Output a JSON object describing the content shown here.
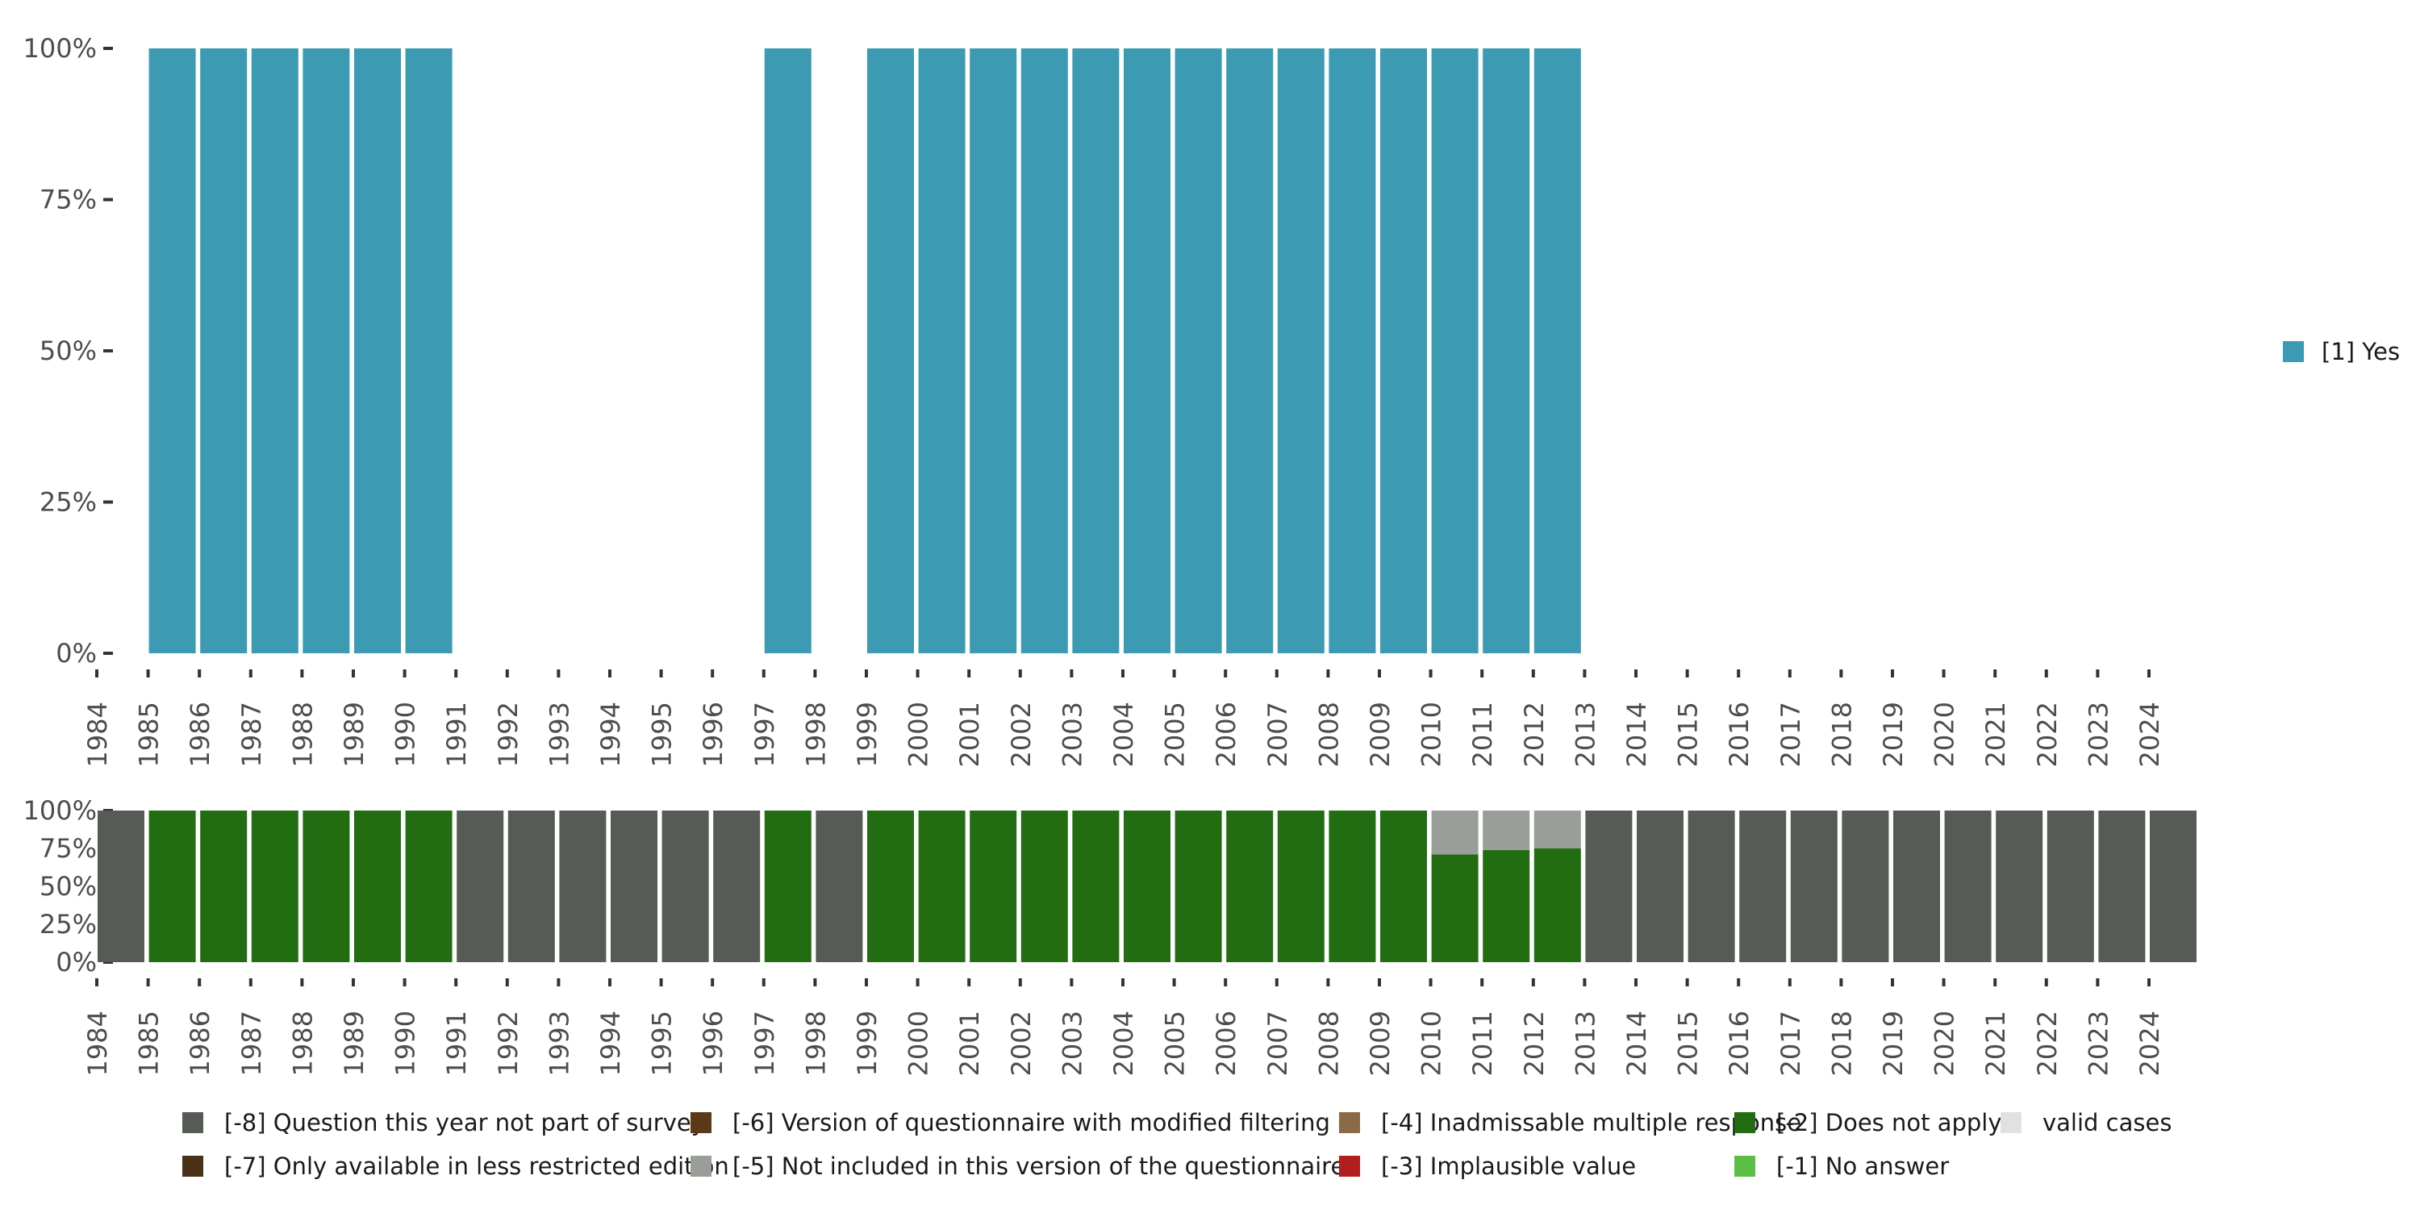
{
  "chart_data": [
    {
      "type": "bar",
      "stacked": true,
      "panel": "top",
      "title": "",
      "xlabel": "",
      "ylabel": "",
      "ylim": [
        0,
        100
      ],
      "yticks": [
        "0%",
        "25%",
        "50%",
        "75%",
        "100%"
      ],
      "categories": [
        "1984",
        "1985",
        "1986",
        "1987",
        "1988",
        "1989",
        "1990",
        "1991",
        "1992",
        "1993",
        "1994",
        "1995",
        "1996",
        "1997",
        "1998",
        "1999",
        "2000",
        "2001",
        "2002",
        "2003",
        "2004",
        "2005",
        "2006",
        "2007",
        "2008",
        "2009",
        "2010",
        "2011",
        "2012",
        "2013",
        "2014",
        "2015",
        "2016",
        "2017",
        "2018",
        "2019",
        "2020",
        "2021",
        "2022",
        "2023",
        "2024"
      ],
      "series": [
        {
          "name": "[1] Yes",
          "color": "#3c9ab2",
          "values": [
            0,
            100,
            100,
            100,
            100,
            100,
            100,
            0,
            0,
            0,
            0,
            0,
            0,
            100,
            0,
            100,
            100,
            100,
            100,
            100,
            100,
            100,
            100,
            100,
            100,
            100,
            100,
            100,
            100,
            0,
            0,
            0,
            0,
            0,
            0,
            0,
            0,
            0,
            0,
            0,
            0
          ]
        }
      ],
      "legend": {
        "position": "right",
        "entries": [
          "[1] Yes"
        ]
      }
    },
    {
      "type": "bar",
      "stacked": true,
      "panel": "bottom",
      "title": "",
      "xlabel": "",
      "ylabel": "",
      "ylim": [
        0,
        100
      ],
      "yticks": [
        "0%",
        "25%",
        "50%",
        "75%",
        "100%"
      ],
      "categories": [
        "1984",
        "1985",
        "1986",
        "1987",
        "1988",
        "1989",
        "1990",
        "1991",
        "1992",
        "1993",
        "1994",
        "1995",
        "1996",
        "1997",
        "1998",
        "1999",
        "2000",
        "2001",
        "2002",
        "2003",
        "2004",
        "2005",
        "2006",
        "2007",
        "2008",
        "2009",
        "2010",
        "2011",
        "2012",
        "2013",
        "2014",
        "2015",
        "2016",
        "2017",
        "2018",
        "2019",
        "2020",
        "2021",
        "2022",
        "2023",
        "2024"
      ],
      "series": [
        {
          "name": "[-2] Does not apply",
          "color": "#226d12",
          "values": [
            0,
            100,
            100,
            100,
            100,
            100,
            100,
            0,
            0,
            0,
            0,
            0,
            0,
            100,
            0,
            100,
            100,
            100,
            100,
            100,
            100,
            100,
            100,
            100,
            100,
            100,
            71,
            74,
            75,
            0,
            0,
            0,
            0,
            0,
            0,
            0,
            0,
            0,
            0,
            0,
            0
          ]
        },
        {
          "name": "[-5] Not included in this version of the questionnaire",
          "color": "#9a9e98",
          "values": [
            0,
            0,
            0,
            0,
            0,
            0,
            0,
            0,
            0,
            0,
            0,
            0,
            0,
            0,
            0,
            0,
            0,
            0,
            0,
            0,
            0,
            0,
            0,
            0,
            0,
            0,
            29,
            26,
            25,
            0,
            0,
            0,
            0,
            0,
            0,
            0,
            0,
            0,
            0,
            0,
            0
          ]
        },
        {
          "name": "[-8] Question this year not part of survey",
          "color": "#565b56",
          "values": [
            100,
            0,
            0,
            0,
            0,
            0,
            0,
            100,
            100,
            100,
            100,
            100,
            100,
            0,
            100,
            0,
            0,
            0,
            0,
            0,
            0,
            0,
            0,
            0,
            0,
            0,
            0,
            0,
            0,
            100,
            100,
            100,
            100,
            100,
            100,
            100,
            100,
            100,
            100,
            100,
            100
          ]
        }
      ],
      "legend": {
        "position": "bottom",
        "entries": [
          {
            "label": "[-8] Question this year not part of survey",
            "color": "#565b56"
          },
          {
            "label": "[-7] Only available in less restricted edition",
            "color": "#4a3016"
          },
          {
            "label": "[-6] Version of questionnaire with modified filtering",
            "color": "#5c3a17"
          },
          {
            "label": "[-5] Not included in this version of the questionnaire",
            "color": "#9a9e98"
          },
          {
            "label": "[-4] Inadmissable multiple response",
            "color": "#8b6a45"
          },
          {
            "label": "[-3] Implausible value",
            "color": "#b01e1e"
          },
          {
            "label": "[-2] Does not apply",
            "color": "#226d12"
          },
          {
            "label": "[-1] No answer",
            "color": "#5bbf45"
          },
          {
            "label": "valid cases",
            "color": "#e0e2df"
          }
        ]
      }
    }
  ]
}
